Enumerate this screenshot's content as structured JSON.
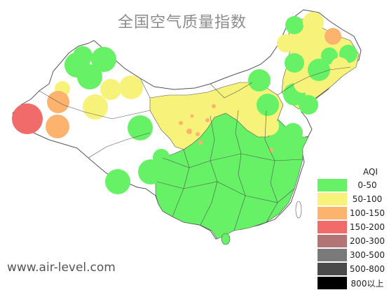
{
  "title": "全国空气质量指数",
  "footer": "www.air-level.com",
  "legend": {
    "title": "AQI",
    "items": [
      {
        "label": "0-50",
        "color": "#66f166"
      },
      {
        "label": "50-100",
        "color": "#f7f37a"
      },
      {
        "label": "100-150",
        "color": "#fbb36e"
      },
      {
        "label": "150-200",
        "color": "#f26b6b"
      },
      {
        "label": "200-300",
        "color": "#b27474"
      },
      {
        "label": "300-500",
        "color": "#7a7a7a"
      },
      {
        "label": "500-800",
        "color": "#4a4a4a"
      },
      {
        "label": "800以上",
        "color": "#000000"
      }
    ]
  },
  "colors": {
    "good": "#66f166",
    "moderate": "#f7f37a",
    "sensitive": "#fbb36e",
    "unhealthy": "#f26b6b",
    "very_unhealthy": "#b27474",
    "border": "#555555"
  }
}
